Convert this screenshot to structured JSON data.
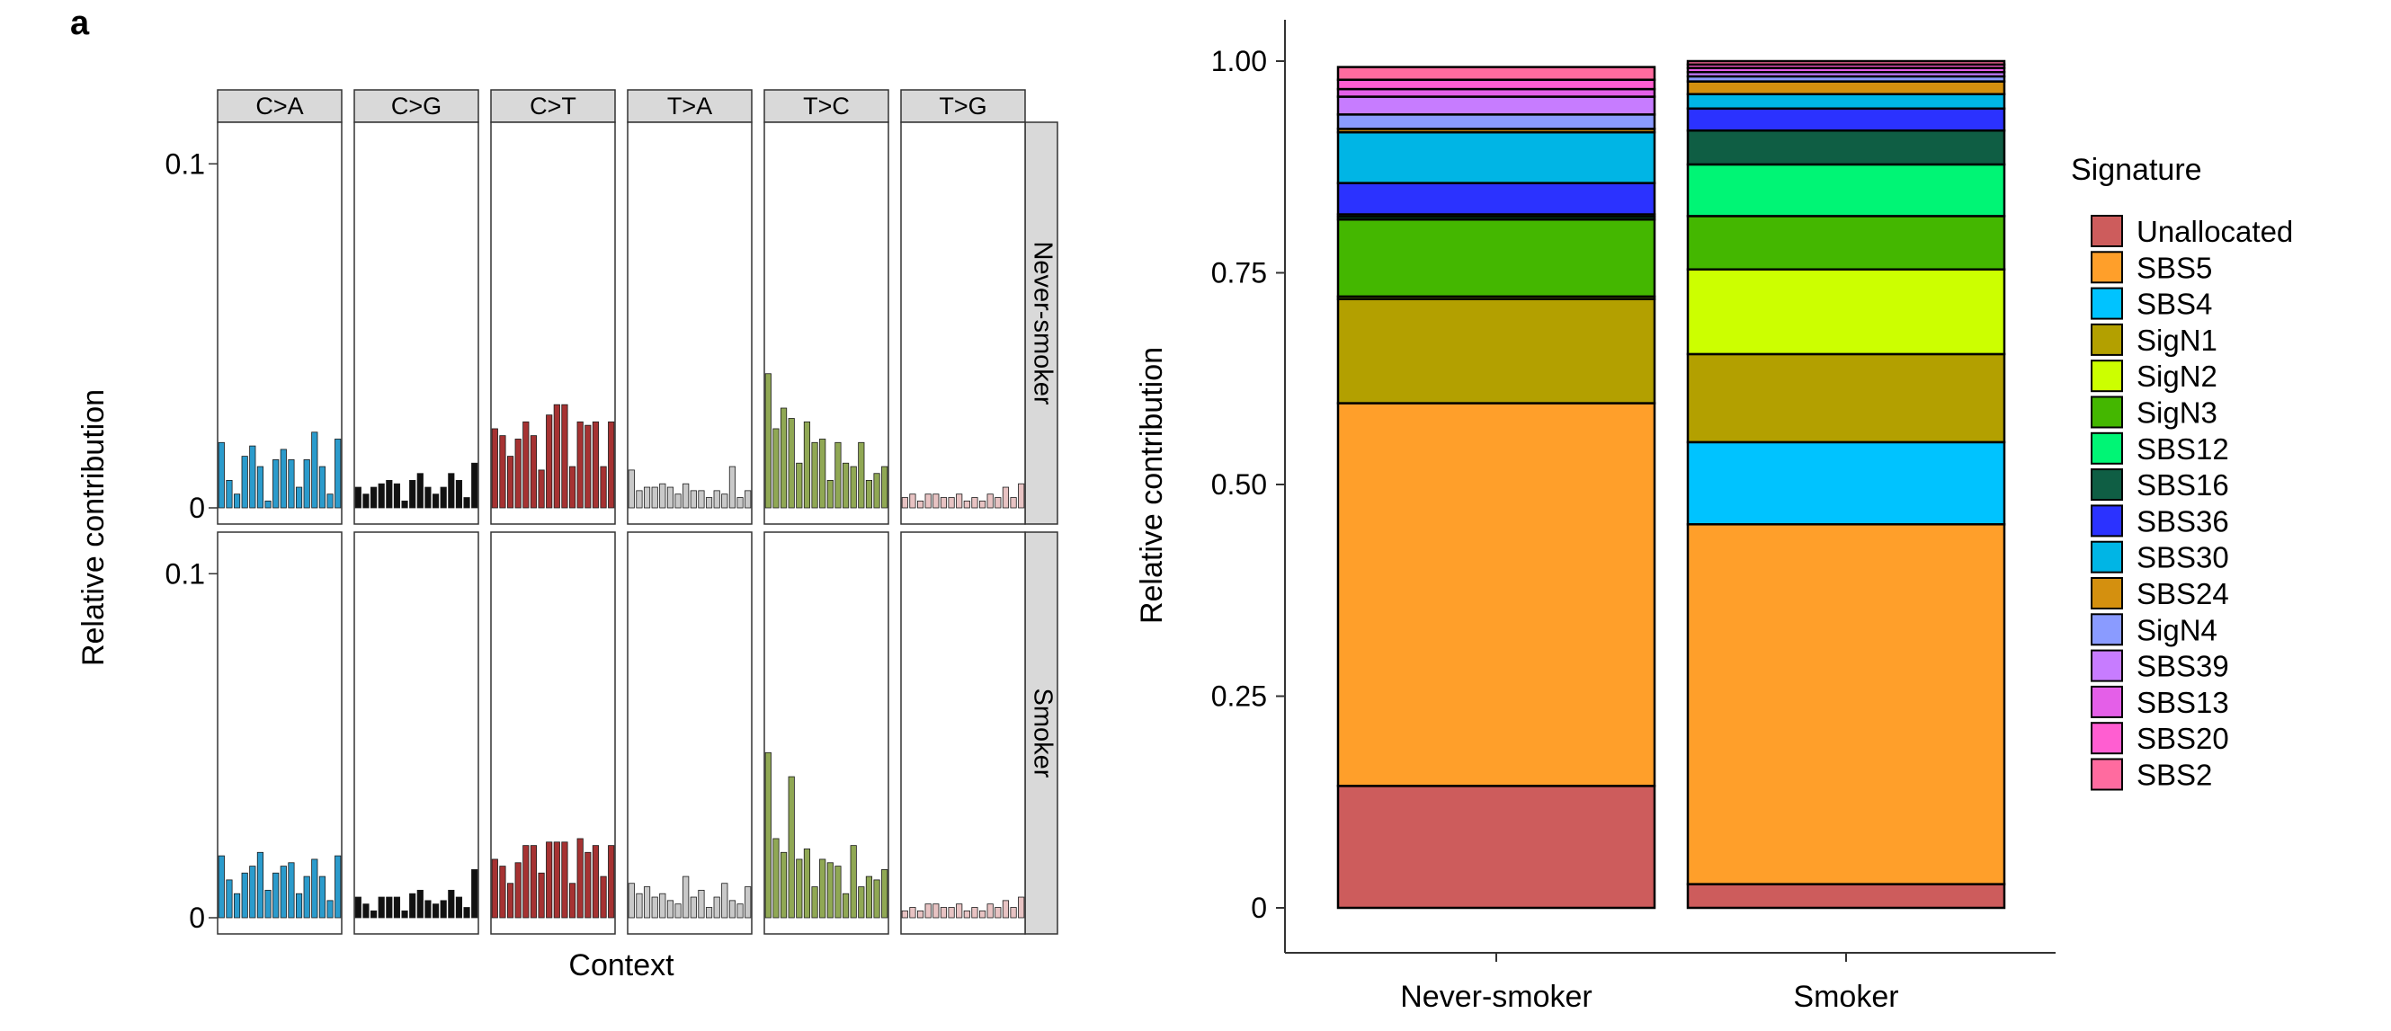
{
  "figure": {
    "panel_label": "a"
  },
  "chart_data": [
    {
      "type": "bar",
      "facet_cols": [
        "C>A",
        "C>G",
        "C>T",
        "T>A",
        "T>C",
        "T>G"
      ],
      "facet_rows": [
        "Never-smoker",
        "Smoker"
      ],
      "xlabel": "Context",
      "ylabel": "Relative contribution",
      "ylim": [
        0,
        0.11
      ],
      "yticks": [
        {
          "v": 0,
          "label": "0"
        },
        {
          "v": 0.1,
          "label": "0.1"
        }
      ],
      "colors": {
        "C>A": "#2b9bcc",
        "C>G": "#111111",
        "C>T": "#a63232",
        "T>A": "#c9c9c9",
        "T>C": "#90a854",
        "T>G": "#e8c3c3"
      },
      "series": [
        {
          "name": "Never-smoker",
          "values": {
            "C>A": [
              0.019,
              0.008,
              0.004,
              0.015,
              0.018,
              0.012,
              0.002,
              0.014,
              0.017,
              0.014,
              0.006,
              0.014,
              0.022,
              0.012,
              0.004,
              0.02
            ],
            "C>G": [
              0.006,
              0.004,
              0.006,
              0.007,
              0.008,
              0.007,
              0.002,
              0.008,
              0.01,
              0.006,
              0.004,
              0.006,
              0.01,
              0.008,
              0.003,
              0.013
            ],
            "C>T": [
              0.023,
              0.021,
              0.015,
              0.02,
              0.025,
              0.021,
              0.011,
              0.027,
              0.03,
              0.03,
              0.012,
              0.025,
              0.024,
              0.025,
              0.012,
              0.025
            ],
            "T>A": [
              0.011,
              0.005,
              0.006,
              0.006,
              0.007,
              0.006,
              0.004,
              0.007,
              0.005,
              0.005,
              0.003,
              0.005,
              0.004,
              0.012,
              0.003,
              0.005
            ],
            "T>C": [
              0.039,
              0.023,
              0.029,
              0.026,
              0.013,
              0.025,
              0.019,
              0.02,
              0.008,
              0.019,
              0.013,
              0.012,
              0.019,
              0.008,
              0.01,
              0.012
            ],
            "T>G": [
              0.003,
              0.004,
              0.002,
              0.004,
              0.004,
              0.003,
              0.003,
              0.004,
              0.002,
              0.003,
              0.002,
              0.004,
              0.003,
              0.006,
              0.003,
              0.007
            ]
          }
        },
        {
          "name": "Smoker",
          "values": {
            "C>A": [
              0.018,
              0.011,
              0.007,
              0.013,
              0.015,
              0.019,
              0.008,
              0.013,
              0.015,
              0.016,
              0.007,
              0.012,
              0.017,
              0.012,
              0.005,
              0.018
            ],
            "C>G": [
              0.006,
              0.004,
              0.002,
              0.006,
              0.006,
              0.006,
              0.002,
              0.007,
              0.008,
              0.005,
              0.004,
              0.005,
              0.008,
              0.006,
              0.003,
              0.014
            ],
            "C>T": [
              0.017,
              0.015,
              0.01,
              0.016,
              0.021,
              0.021,
              0.013,
              0.022,
              0.022,
              0.022,
              0.01,
              0.023,
              0.019,
              0.021,
              0.012,
              0.021
            ],
            "T>A": [
              0.01,
              0.007,
              0.009,
              0.006,
              0.007,
              0.005,
              0.004,
              0.012,
              0.006,
              0.008,
              0.003,
              0.006,
              0.01,
              0.005,
              0.004,
              0.009
            ],
            "T>C": [
              0.048,
              0.023,
              0.019,
              0.041,
              0.017,
              0.02,
              0.009,
              0.017,
              0.016,
              0.015,
              0.007,
              0.021,
              0.009,
              0.012,
              0.011,
              0.014
            ],
            "T>G": [
              0.002,
              0.003,
              0.002,
              0.004,
              0.004,
              0.003,
              0.003,
              0.004,
              0.002,
              0.003,
              0.002,
              0.004,
              0.003,
              0.005,
              0.003,
              0.006
            ]
          }
        }
      ]
    },
    {
      "type": "bar",
      "stacked": true,
      "categories": [
        "Never-smoker",
        "Smoker"
      ],
      "ylabel": "Relative contribution",
      "xlabel": "",
      "ylim": [
        0,
        1
      ],
      "yticks": [
        "0",
        "0.25",
        "0.50",
        "0.75",
        "1.00"
      ],
      "legend": {
        "title": "Signature",
        "position": "right"
      },
      "series": [
        {
          "name": "Unallocated",
          "color": "#cd5c5c",
          "values": [
            0.144,
            0.028
          ]
        },
        {
          "name": "SBS5",
          "color": "#ff9f2a",
          "values": [
            0.452,
            0.425
          ]
        },
        {
          "name": "SBS4",
          "color": "#00c3ff",
          "values": [
            0.0,
            0.097
          ]
        },
        {
          "name": "SigN1",
          "color": "#b3a000",
          "values": [
            0.123,
            0.104
          ]
        },
        {
          "name": "SigN2",
          "color": "#ccff00",
          "values": [
            0.003,
            0.1
          ]
        },
        {
          "name": "SigN3",
          "color": "#44b700",
          "values": [
            0.091,
            0.063
          ]
        },
        {
          "name": "SBS12",
          "color": "#00f575",
          "values": [
            0.003,
            0.061
          ]
        },
        {
          "name": "SBS16",
          "color": "#0f5e44",
          "values": [
            0.003,
            0.04
          ]
        },
        {
          "name": "SBS36",
          "color": "#2b32ff",
          "values": [
            0.037,
            0.026
          ]
        },
        {
          "name": "SBS30",
          "color": "#00b5e5",
          "values": [
            0.06,
            0.017
          ]
        },
        {
          "name": "SBS24",
          "color": "#d4900f",
          "values": [
            0.004,
            0.015
          ]
        },
        {
          "name": "SigN4",
          "color": "#8a9bff",
          "values": [
            0.017,
            0.006
          ]
        },
        {
          "name": "SBS39",
          "color": "#c77cff",
          "values": [
            0.021,
            0.005
          ]
        },
        {
          "name": "SBS13",
          "color": "#e45fe8",
          "values": [
            0.009,
            0.005
          ]
        },
        {
          "name": "SBS20",
          "color": "#ff5ed1",
          "values": [
            0.011,
            0.004
          ]
        },
        {
          "name": "SBS2",
          "color": "#ff6b9f",
          "values": [
            0.015,
            0.004
          ]
        }
      ]
    }
  ]
}
